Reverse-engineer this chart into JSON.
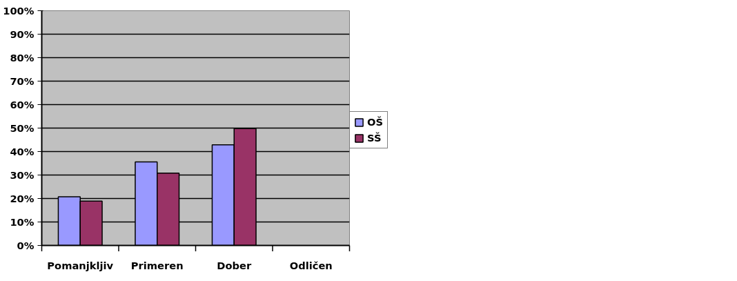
{
  "chart_data": {
    "type": "bar",
    "categories": [
      "Pomanjkljiv",
      "Primeren",
      "Dober",
      "Odličen"
    ],
    "series": [
      {
        "name": "OŠ",
        "color": "#9999ff",
        "values": [
          20.7,
          35.6,
          42.9,
          null
        ]
      },
      {
        "name": "SŠ",
        "color": "#993366",
        "values": [
          18.9,
          30.8,
          49.8,
          null
        ]
      }
    ],
    "ylim": [
      0,
      100
    ],
    "yticks": [
      {
        "value": 0,
        "label": "0%"
      },
      {
        "value": 10,
        "label": "10%"
      },
      {
        "value": 20,
        "label": "20%"
      },
      {
        "value": 30,
        "label": "30%"
      },
      {
        "value": 40,
        "label": "40%"
      },
      {
        "value": 50,
        "label": "50%"
      },
      {
        "value": 60,
        "label": "60%"
      },
      {
        "value": 70,
        "label": "70%"
      },
      {
        "value": 80,
        "label": "80%"
      },
      {
        "value": 90,
        "label": "90%"
      },
      {
        "value": 100,
        "label": "100%"
      }
    ],
    "grid": "y",
    "legend": "right"
  }
}
